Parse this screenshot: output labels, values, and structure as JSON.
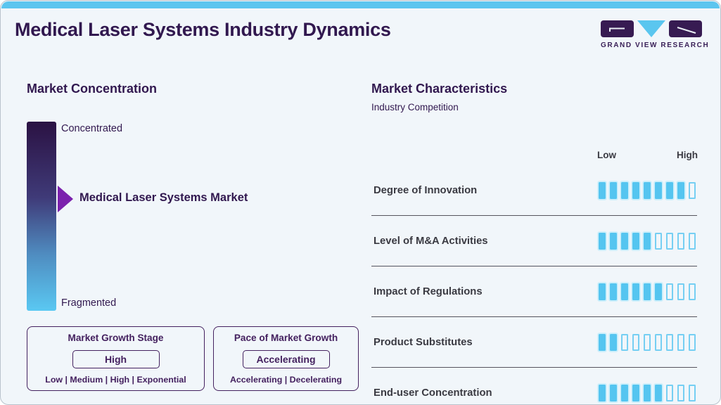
{
  "header": {
    "title": "Medical Laser Systems Industry Dynamics",
    "logo_text": "GRAND VIEW RESEARCH"
  },
  "market_concentration": {
    "heading": "Market Concentration",
    "top_label": "Concentrated",
    "bottom_label": "Fragmented",
    "pointer_label": "Medical Laser Systems Market",
    "gradient_top_color": "#2b1243",
    "gradient_bottom_color": "#5ac8f2",
    "arrow_color": "#7b21ad"
  },
  "growth_stage_box": {
    "title": "Market Growth Stage",
    "value": "High",
    "options": "Low | Medium | High | Exponential"
  },
  "pace_box": {
    "title": "Pace of Market Growth",
    "value": "Accelerating",
    "options": "Accelerating | Decelerating"
  },
  "market_characteristics": {
    "heading": "Market Characteristics",
    "subtitle": "Industry Competition",
    "scale_low": "Low",
    "scale_high": "High",
    "segment_total": 9,
    "segment_fill_color": "#55c5f0",
    "rows": [
      {
        "label": "Degree of Innovation",
        "filled": 8
      },
      {
        "label": "Level of M&A Activities",
        "filled": 5
      },
      {
        "label": "Impact of Regulations",
        "filled": 6
      },
      {
        "label": "Product Substitutes",
        "filled": 2
      },
      {
        "label": "End-user Concentration",
        "filled": 6
      }
    ]
  },
  "chart_data": {
    "type": "bar",
    "title": "Market Characteristics - Industry Competition",
    "categories": [
      "Degree of Innovation",
      "Level of M&A Activities",
      "Impact of Regulations",
      "Product Substitutes",
      "End-user Concentration"
    ],
    "values": [
      8,
      5,
      6,
      2,
      6
    ],
    "scale": {
      "min": 0,
      "max": 9,
      "low_label": "Low",
      "high_label": "High"
    },
    "legend_position": "none",
    "grid": false
  },
  "colors": {
    "accent_blue": "#5cc5ef",
    "brand_purple": "#31184f",
    "box_border_purple": "#44215f",
    "row_label_gray": "#3a3a42",
    "background": "#f1f6fa"
  }
}
